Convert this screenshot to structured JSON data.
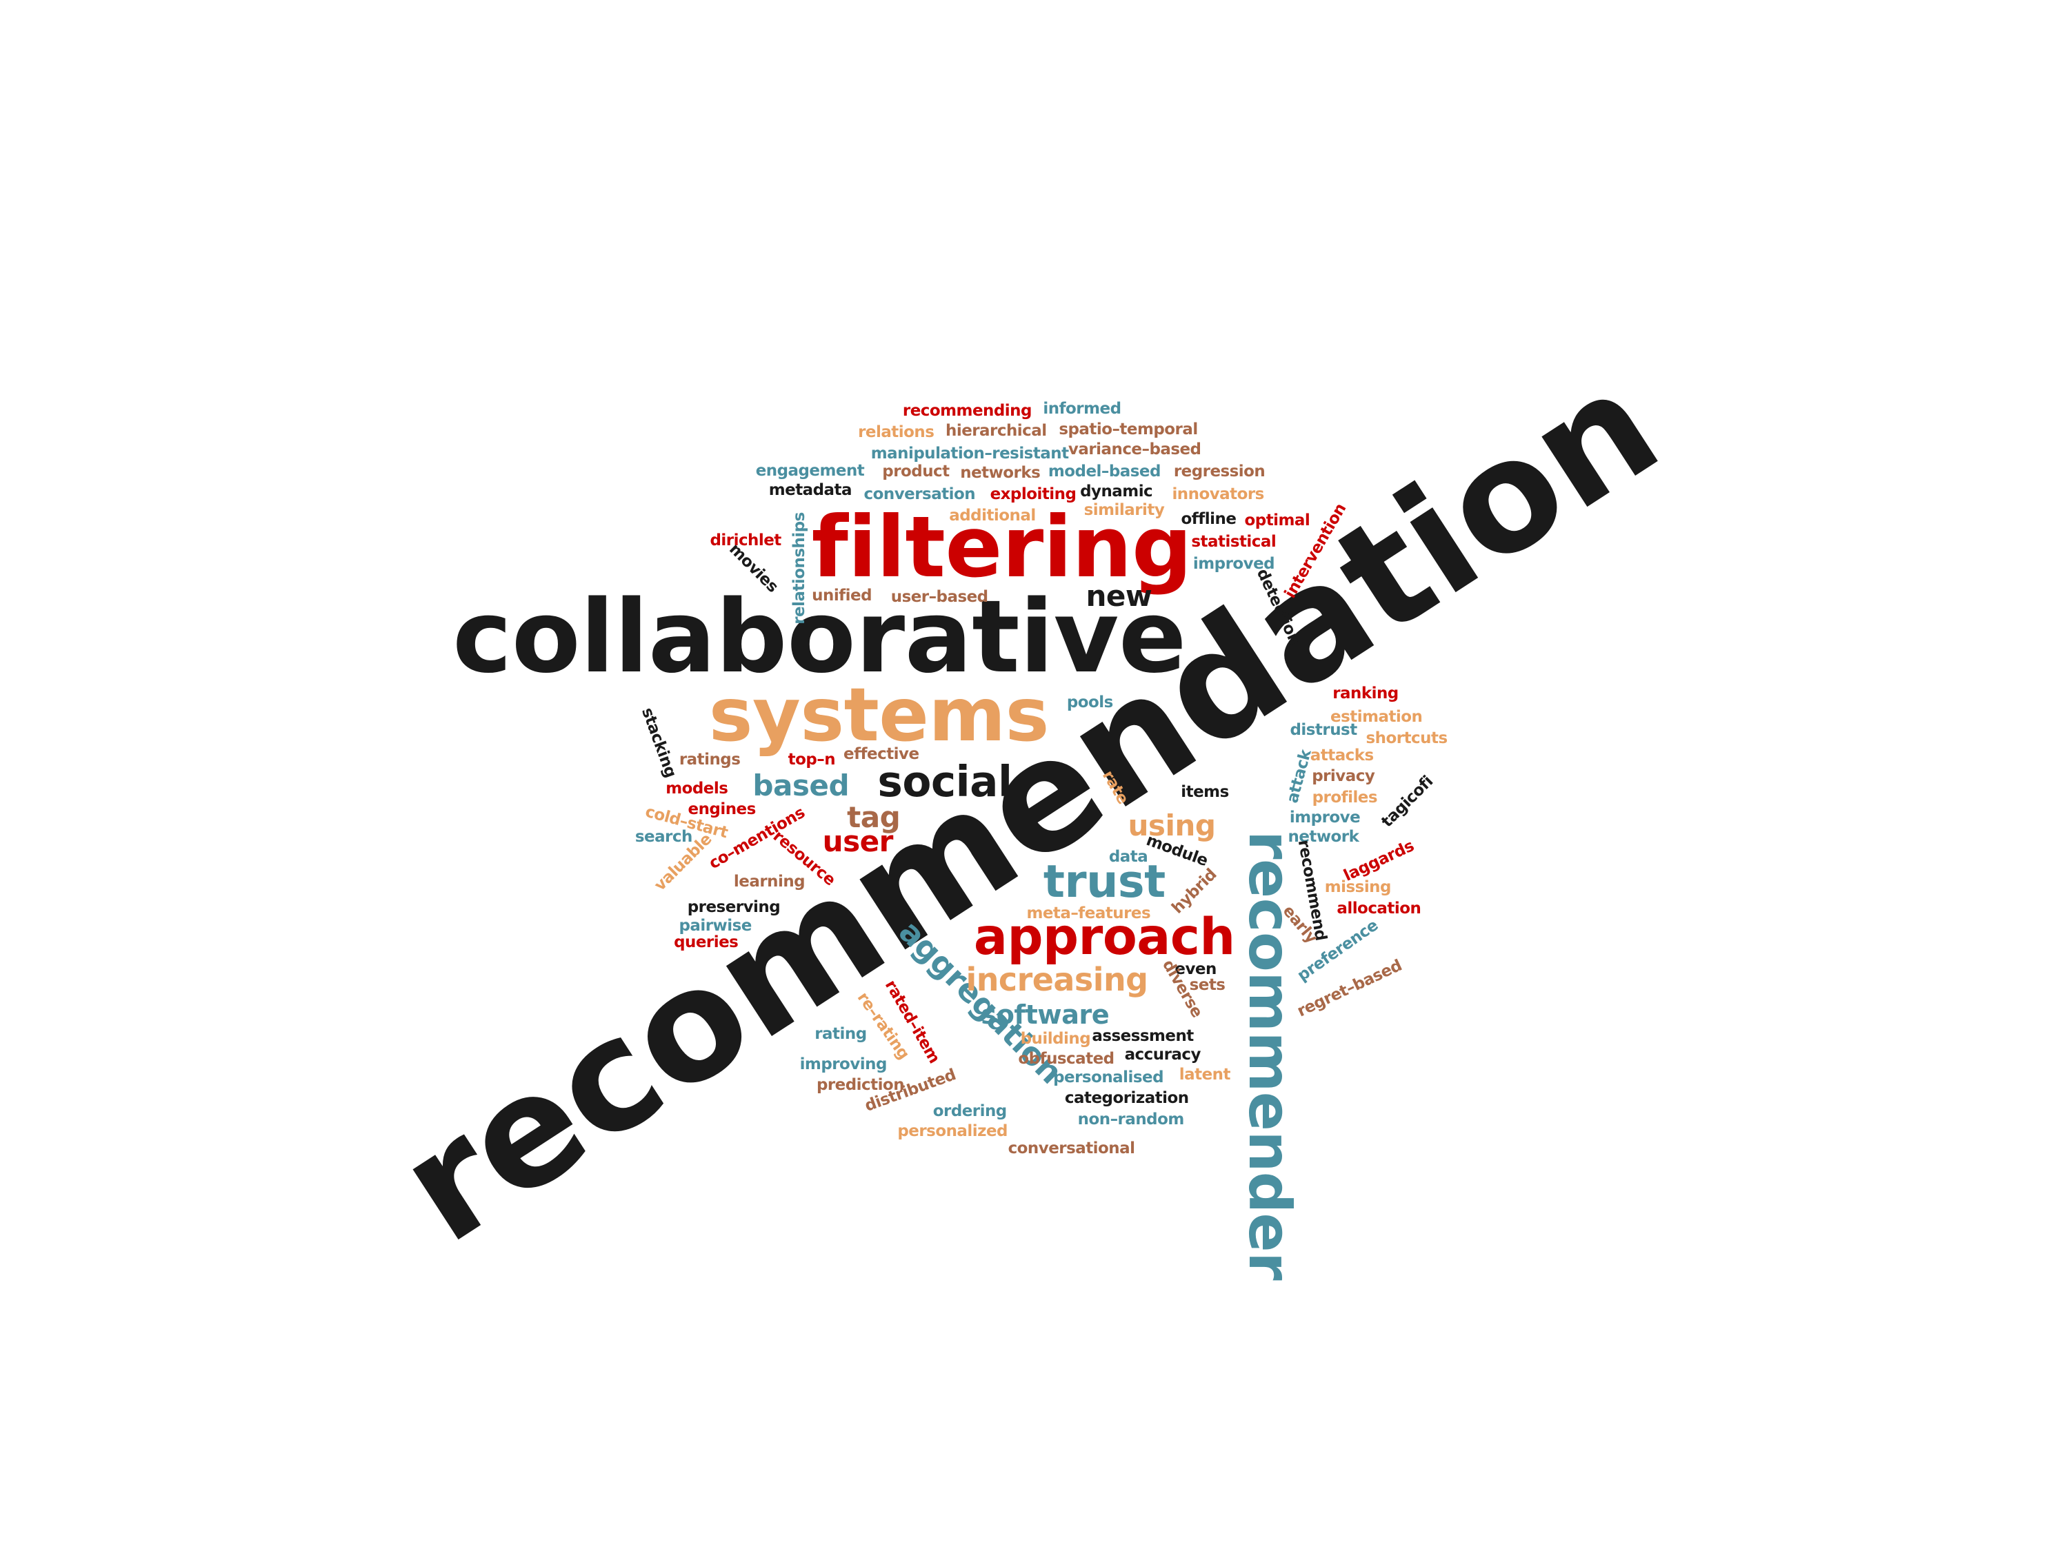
{
  "colors": {
    "black": "#1a1a1a",
    "red": "#cc0000",
    "orange": "#e8a060",
    "teal": "#4a8fa0",
    "brown": "#a86848"
  },
  "words": [
    {
      "id": "recommendation",
      "text": "recommendation",
      "color": "black"
    },
    {
      "id": "collaborative",
      "text": "collaborative",
      "color": "black"
    },
    {
      "id": "filtering",
      "text": "filtering",
      "color": "red"
    },
    {
      "id": "systems",
      "text": "systems",
      "color": "orange"
    },
    {
      "id": "recommender",
      "text": "recommender",
      "color": "teal"
    },
    {
      "id": "approach",
      "text": "approach",
      "color": "red"
    },
    {
      "id": "trust",
      "text": "trust",
      "color": "teal"
    },
    {
      "id": "social",
      "text": "social",
      "color": "black"
    },
    {
      "id": "aggregation",
      "text": "aggregation",
      "color": "teal"
    },
    {
      "id": "increasing",
      "text": "increasing",
      "color": "orange"
    },
    {
      "id": "software",
      "text": "software",
      "color": "teal"
    },
    {
      "id": "based",
      "text": "based",
      "color": "teal"
    },
    {
      "id": "using",
      "text": "using",
      "color": "orange"
    },
    {
      "id": "new",
      "text": "new",
      "color": "black"
    },
    {
      "id": "tag",
      "text": "tag",
      "color": "brown"
    },
    {
      "id": "user",
      "text": "user",
      "color": "red"
    },
    {
      "id": "recommending",
      "text": "recommending",
      "color": "red"
    },
    {
      "id": "informed",
      "text": "informed",
      "color": "teal"
    },
    {
      "id": "relations",
      "text": "relations",
      "color": "orange"
    },
    {
      "id": "hierarchical",
      "text": "hierarchical",
      "color": "brown"
    },
    {
      "id": "spatio-temporal",
      "text": "spatio–temporal",
      "color": "brown"
    },
    {
      "id": "manipulation-resistant",
      "text": "manipulation–resistant",
      "color": "teal"
    },
    {
      "id": "variance-based",
      "text": "variance–based",
      "color": "brown"
    },
    {
      "id": "engagement",
      "text": "engagement",
      "color": "teal"
    },
    {
      "id": "product",
      "text": "product",
      "color": "brown"
    },
    {
      "id": "networks",
      "text": "networks",
      "color": "brown"
    },
    {
      "id": "model-based",
      "text": "model–based",
      "color": "teal"
    },
    {
      "id": "regression",
      "text": "regression",
      "color": "brown"
    },
    {
      "id": "metadata",
      "text": "metadata",
      "color": "black"
    },
    {
      "id": "conversation",
      "text": "conversation",
      "color": "teal"
    },
    {
      "id": "exploiting",
      "text": "exploiting",
      "color": "red"
    },
    {
      "id": "dynamic",
      "text": "dynamic",
      "color": "black"
    },
    {
      "id": "innovators",
      "text": "innovators",
      "color": "orange"
    },
    {
      "id": "additional",
      "text": "additional",
      "color": "orange"
    },
    {
      "id": "similarity",
      "text": "similarity",
      "color": "orange"
    },
    {
      "id": "offline",
      "text": "offline",
      "color": "black"
    },
    {
      "id": "optimal",
      "text": "optimal",
      "color": "red"
    },
    {
      "id": "dirichlet",
      "text": "dirichlet",
      "color": "red"
    },
    {
      "id": "statistical",
      "text": "statistical",
      "color": "red"
    },
    {
      "id": "improved",
      "text": "improved",
      "color": "teal"
    },
    {
      "id": "movies",
      "text": "movies",
      "color": "black"
    },
    {
      "id": "relationships",
      "text": "relationships",
      "color": "teal"
    },
    {
      "id": "intervention",
      "text": "intervention",
      "color": "red"
    },
    {
      "id": "detection",
      "text": "detection",
      "color": "black"
    },
    {
      "id": "unified",
      "text": "unified",
      "color": "brown"
    },
    {
      "id": "user-based",
      "text": "user–based",
      "color": "brown"
    },
    {
      "id": "ranking",
      "text": "ranking",
      "color": "red"
    },
    {
      "id": "pools",
      "text": "pools",
      "color": "teal"
    },
    {
      "id": "estimation",
      "text": "estimation",
      "color": "orange"
    },
    {
      "id": "distrust",
      "text": "distrust",
      "color": "teal"
    },
    {
      "id": "shortcuts",
      "text": "shortcuts",
      "color": "orange"
    },
    {
      "id": "stacking",
      "text": "stacking",
      "color": "black"
    },
    {
      "id": "ratings",
      "text": "ratings",
      "color": "brown"
    },
    {
      "id": "top-n",
      "text": "top–n",
      "color": "red"
    },
    {
      "id": "effective",
      "text": "effective",
      "color": "brown"
    },
    {
      "id": "attacks",
      "text": "attacks",
      "color": "orange"
    },
    {
      "id": "attack",
      "text": "attack",
      "color": "teal"
    },
    {
      "id": "privacy",
      "text": "privacy",
      "color": "brown"
    },
    {
      "id": "profiles",
      "text": "profiles",
      "color": "orange"
    },
    {
      "id": "rate",
      "text": "rate",
      "color": "orange"
    },
    {
      "id": "items",
      "text": "items",
      "color": "black"
    },
    {
      "id": "tagicofi",
      "text": "tagicofi",
      "color": "black"
    },
    {
      "id": "models",
      "text": "models",
      "color": "red"
    },
    {
      "id": "engines",
      "text": "engines",
      "color": "red"
    },
    {
      "id": "improve",
      "text": "improve",
      "color": "teal"
    },
    {
      "id": "network",
      "text": "network",
      "color": "teal"
    },
    {
      "id": "cold-start",
      "text": "cold–start",
      "color": "orange"
    },
    {
      "id": "search",
      "text": "search",
      "color": "teal"
    },
    {
      "id": "co-mentions",
      "text": "co–mentions",
      "color": "red"
    },
    {
      "id": "valuable",
      "text": "valuable",
      "color": "orange"
    },
    {
      "id": "resource",
      "text": "resource",
      "color": "red"
    },
    {
      "id": "module",
      "text": "module",
      "color": "black"
    },
    {
      "id": "data",
      "text": "data",
      "color": "teal"
    },
    {
      "id": "recommend",
      "text": "recommend",
      "color": "black"
    },
    {
      "id": "laggards",
      "text": "laggards",
      "color": "red"
    },
    {
      "id": "missing",
      "text": "missing",
      "color": "orange"
    },
    {
      "id": "learning",
      "text": "learning",
      "color": "brown"
    },
    {
      "id": "hybrid",
      "text": "hybrid",
      "color": "brown"
    },
    {
      "id": "allocation",
      "text": "allocation",
      "color": "red"
    },
    {
      "id": "preserving",
      "text": "preserving",
      "color": "black"
    },
    {
      "id": "meta-features",
      "text": "meta–features",
      "color": "orange"
    },
    {
      "id": "pairwise",
      "text": "pairwise",
      "color": "teal"
    },
    {
      "id": "early",
      "text": "early",
      "color": "brown"
    },
    {
      "id": "queries",
      "text": "queries",
      "color": "red"
    },
    {
      "id": "preference",
      "text": "preference",
      "color": "teal"
    },
    {
      "id": "even",
      "text": "even",
      "color": "black"
    },
    {
      "id": "diverse",
      "text": "diverse",
      "color": "brown"
    },
    {
      "id": "sets",
      "text": "sets",
      "color": "brown"
    },
    {
      "id": "regret-based",
      "text": "regret–based",
      "color": "brown"
    },
    {
      "id": "rated-item",
      "text": "rated–item",
      "color": "red"
    },
    {
      "id": "re-rating",
      "text": "re–rating",
      "color": "orange"
    },
    {
      "id": "rating",
      "text": "rating",
      "color": "teal"
    },
    {
      "id": "building",
      "text": "building",
      "color": "orange"
    },
    {
      "id": "assessment",
      "text": "assessment",
      "color": "black"
    },
    {
      "id": "accuracy",
      "text": "accuracy",
      "color": "black"
    },
    {
      "id": "obfuscated",
      "text": "obfuscated",
      "color": "brown"
    },
    {
      "id": "improving",
      "text": "improving",
      "color": "teal"
    },
    {
      "id": "personalised",
      "text": "personalised",
      "color": "teal"
    },
    {
      "id": "latent",
      "text": "latent",
      "color": "orange"
    },
    {
      "id": "prediction",
      "text": "prediction",
      "color": "brown"
    },
    {
      "id": "distributed",
      "text": "distributed",
      "color": "brown"
    },
    {
      "id": "categorization",
      "text": "categorization",
      "color": "black"
    },
    {
      "id": "ordering",
      "text": "ordering",
      "color": "teal"
    },
    {
      "id": "non-random",
      "text": "non–random",
      "color": "teal"
    },
    {
      "id": "personalized",
      "text": "personalized",
      "color": "orange"
    },
    {
      "id": "conversational",
      "text": "conversational",
      "color": "brown"
    }
  ]
}
